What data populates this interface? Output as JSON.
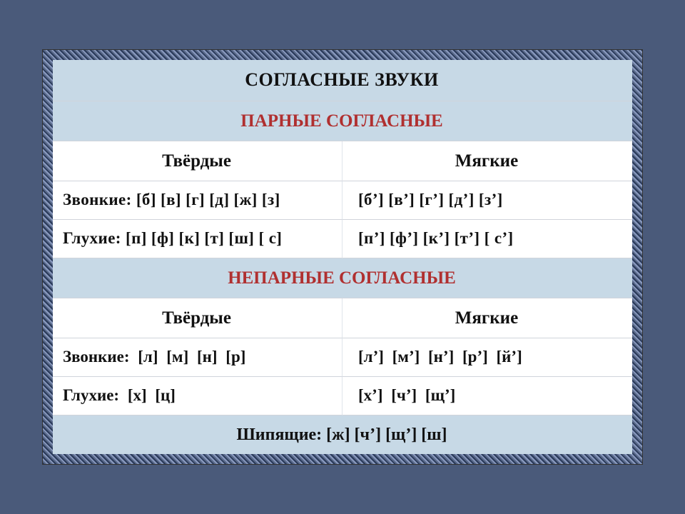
{
  "colors": {
    "header_bg": "#c7d9e6",
    "body_bg": "#ffffff",
    "text": "#111111",
    "accent_red": "#b03030",
    "border": "#d0d4db",
    "frame_dark": "#2a3a5a",
    "frame_mid": "#5a6a8a",
    "frame_light": "#8a9abf"
  },
  "typography": {
    "font_family": "Times New Roman",
    "title_fontsize": 26,
    "header_fontsize": 25,
    "body_fontsize": 23,
    "title_weight": "bold"
  },
  "table": {
    "title": "СОГЛАСНЫЕ ЗВУКИ",
    "section1": {
      "title": "ПАРНЫЕ СОГЛАСНЫЕ",
      "col_left": "Твёрдые",
      "col_right": "Мягкие",
      "rows": [
        {
          "left": "Звонкие: [б]  [в]   [г]  [д]  [ж]   [з]",
          "right": "[б’]  [в’]   [г’]  [д’]   [з’]"
        },
        {
          "left": "Глухие:   [п]  [ф]  [к]  [т]   [ш]  [ с]",
          "right": "[п’]  [ф’]  [к’]  [т’]   [ с’]"
        }
      ]
    },
    "section2": {
      "title": "НЕПАРНЫЕ СОГЛАСНЫЕ",
      "col_left": "Твёрдые",
      "col_right": "Мягкие",
      "rows": [
        {
          "left": "Звонкие: [л] [м] [н] [р]",
          "right": "[л’] [м’] [н’] [р’] [й’]"
        },
        {
          "left": "Глухие:   [х] [ц]",
          "right": "[х’] [ч’] [щ’]"
        }
      ]
    },
    "footer": "Шипящие: [ж] [ч’] [щ’] [ш]"
  }
}
